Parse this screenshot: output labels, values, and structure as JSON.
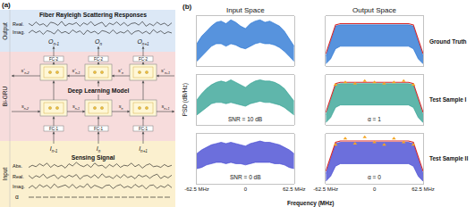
{
  "panel_a": {
    "label": "(a)",
    "output": {
      "side_label": "Output",
      "title": "Fiber Rayleigh Scattering Responses",
      "waveforms": [
        {
          "label": "Real.",
          "values": [
            0.2,
            -0.5,
            0.7,
            -0.3,
            0.1,
            -0.8,
            0.6,
            0.3,
            -0.4,
            0.9,
            -0.6,
            0.2,
            -0.1,
            0.5,
            -0.7,
            0.4,
            -0.2,
            0.8,
            -0.5,
            0.1,
            0.6,
            -0.9,
            0.3,
            -0.2,
            0.7,
            -0.4,
            0.5,
            -0.6,
            0.2,
            0.4,
            -0.3,
            0.8,
            -0.7,
            0.1,
            -0.5,
            0.6,
            -0.2,
            0.3,
            -0.6,
            0.4
          ]
        },
        {
          "label": "Imag.",
          "values": [
            -0.3,
            0.6,
            -0.2,
            0.4,
            -0.7,
            0.5,
            0.1,
            -0.6,
            0.8,
            -0.3,
            0.2,
            -0.5,
            0.7,
            -0.1,
            0.4,
            -0.8,
            0.6,
            -0.2,
            0.3,
            -0.6,
            0.5,
            0.2,
            -0.4,
            0.7,
            -0.5,
            0.1,
            -0.3,
            0.6,
            -0.7,
            0.2,
            0.5,
            -0.4,
            0.3,
            -0.6,
            0.8,
            -0.2,
            0.4,
            -0.5,
            0.1,
            -0.3
          ]
        }
      ],
      "nodes": [
        {
          "base": "O",
          "sub": "n-1"
        },
        {
          "base": "O",
          "sub": "n"
        },
        {
          "base": "O",
          "sub": "n+1"
        }
      ]
    },
    "model": {
      "side_label": "Bi-GRU",
      "title": "Deep Learning Model",
      "fc_top": "FC-2",
      "fc_bottom": "FC-1",
      "backward_states": [
        {
          "base": "s'",
          "sub": "n-2"
        },
        {
          "base": "s'",
          "sub": "n-1"
        },
        {
          "base": "s'",
          "sub": "n"
        },
        {
          "base": "s'",
          "sub": "n+1"
        }
      ],
      "forward_states": [
        {
          "base": "s",
          "sub": "n-2"
        },
        {
          "base": "s",
          "sub": "n-1"
        },
        {
          "base": "s",
          "sub": "n"
        },
        {
          "base": "s",
          "sub": "n+1"
        }
      ]
    },
    "input": {
      "side_label": "Input",
      "title": "Sensing Signal",
      "nodes": [
        {
          "base": "I",
          "sub": "n-1"
        },
        {
          "base": "I",
          "sub": "n"
        },
        {
          "base": "I",
          "sub": "n+1"
        }
      ],
      "waveforms": [
        {
          "label": "Abs.",
          "values": [
            0.3,
            0.6,
            0.4,
            0.8,
            0.5,
            0.9,
            0.3,
            0.7,
            0.4,
            0.6,
            0.2,
            0.8,
            0.5,
            1.0,
            0.6,
            0.4,
            0.7,
            0.3,
            0.9,
            0.5,
            0.6,
            0.2,
            0.7,
            0.4,
            0.8,
            0.3,
            0.6,
            0.5,
            0.9,
            0.4,
            0.7,
            0.2,
            0.6,
            0.8,
            0.4,
            0.5,
            0.3,
            0.7,
            0.4,
            0.6
          ]
        },
        {
          "label": "Real.",
          "values": [
            0.4,
            -0.6,
            0.3,
            -0.2,
            0.8,
            -0.5,
            0.1,
            0.6,
            -0.7,
            0.3,
            -0.4,
            0.5,
            -0.1,
            0.7,
            -0.8,
            0.2,
            0.4,
            -0.3,
            0.6,
            -0.5,
            0.9,
            -0.2,
            0.1,
            -0.6,
            0.5,
            -0.4,
            0.7,
            -0.3,
            0.2,
            -0.7,
            0.6,
            -0.1,
            0.4,
            -0.5,
            0.3,
            0.8,
            -0.6,
            0.2,
            -0.4,
            0.5
          ]
        },
        {
          "label": "Imag.",
          "values": [
            -0.5,
            0.3,
            -0.7,
            0.6,
            -0.2,
            0.4,
            -0.6,
            0.8,
            -0.3,
            0.1,
            0.5,
            -0.4,
            0.7,
            -0.6,
            0.2,
            -0.3,
            0.9,
            -0.5,
            0.4,
            -0.1,
            -0.6,
            0.3,
            0.5,
            -0.7,
            0.2,
            0.6,
            -0.4,
            0.1,
            -0.5,
            0.7,
            -0.2,
            0.4,
            -0.8,
            0.3,
            0.5,
            -0.6,
            0.2,
            -0.3,
            0.6,
            -0.4
          ]
        }
      ],
      "alpha_label": "α"
    }
  },
  "panel_b": {
    "label": "(b)",
    "column_titles": [
      "Input Space",
      "Output Space"
    ],
    "row_labels": [
      "Ground Truth",
      "Test Sample I",
      "Test Sample II"
    ],
    "ylabel": "PSD (dB/Hz)",
    "xlabel": "Frequency (MHz)"
  },
  "chart_data": [
    {
      "type": "line",
      "xlim": [
        -62.5,
        62.5
      ],
      "ylim": [
        -40,
        0
      ],
      "grid": false,
      "tick_labels": false,
      "x": [
        -62.5,
        -56.25,
        -50,
        -43.75,
        -37.5,
        -31.25,
        -25,
        -18.75,
        -12.5,
        -6.25,
        0,
        6.25,
        12.5,
        18.75,
        25,
        31.25,
        37.5,
        43.75,
        50,
        56.25,
        62.5
      ],
      "series": [
        {
          "type": "line",
          "color": "#1f6fd1",
          "values": [
            -36,
            -32,
            -28,
            -24,
            -22,
            -22,
            -24,
            -22,
            -23,
            -25,
            -26,
            -24,
            -22,
            -21,
            -22,
            -22,
            -23,
            -25,
            -28,
            -32,
            -36
          ]
        },
        {
          "type": "area",
          "color": "#1f6fd1",
          "values": [
            -22,
            -16,
            -12,
            -8,
            -5,
            -4,
            -6,
            -3,
            -5,
            -8,
            -10,
            -6,
            -4,
            -3,
            -5,
            -4,
            -6,
            -8,
            -12,
            -18,
            -24
          ]
        }
      ]
    },
    {
      "type": "line",
      "xlim": [
        -62.5,
        62.5
      ],
      "ylim": [
        -40,
        0
      ],
      "grid": false,
      "tick_labels": false,
      "x": [
        -62.5,
        -56.25,
        -50,
        -43.75,
        -37.5,
        -31.25,
        -25,
        -18.75,
        -12.5,
        -6.25,
        0,
        6.25,
        12.5,
        18.75,
        25,
        31.25,
        37.5,
        43.75,
        50,
        56.25,
        62.5
      ],
      "series": [
        {
          "type": "line",
          "color": "#1f6fd1",
          "values": [
            -38,
            -34,
            -26,
            -24,
            -24,
            -24,
            -24,
            -24,
            -24,
            -24,
            -24,
            -24,
            -24,
            -24,
            -24,
            -24,
            -24,
            -24,
            -26,
            -34,
            -38
          ]
        },
        {
          "type": "area",
          "color": "#1f6fd1",
          "values": [
            -32,
            -20,
            -8,
            -7,
            -7,
            -7,
            -7,
            -7,
            -7,
            -7,
            -7,
            -7,
            -7,
            -7,
            -7,
            -7,
            -7,
            -7,
            -8,
            -20,
            -32
          ]
        },
        {
          "type": "line",
          "color": "#d62728",
          "values": [
            -30,
            -18,
            -7,
            -6,
            -6,
            -6,
            -6,
            -6,
            -6,
            -6,
            -6,
            -6,
            -6,
            -6,
            -6,
            -6,
            -6,
            -6,
            -7,
            -18,
            -30
          ]
        }
      ]
    },
    {
      "type": "line",
      "xlim": [
        -62.5,
        62.5
      ],
      "ylim": [
        -40,
        0
      ],
      "grid": false,
      "tick_labels": false,
      "annotations": [
        "SNR = 10 dB"
      ],
      "x": [
        -62.5,
        -56.25,
        -50,
        -43.75,
        -37.5,
        -31.25,
        -25,
        -18.75,
        -12.5,
        -6.25,
        0,
        6.25,
        12.5,
        18.75,
        25,
        31.25,
        37.5,
        43.75,
        50,
        56.25,
        62.5
      ],
      "series": [
        {
          "type": "line",
          "color": "#2a9d8f",
          "values": [
            -32,
            -29,
            -26,
            -23,
            -22,
            -22,
            -23,
            -22,
            -23,
            -24,
            -25,
            -23,
            -22,
            -21,
            -22,
            -22,
            -23,
            -24,
            -26,
            -29,
            -32
          ]
        },
        {
          "type": "area",
          "color": "#2a9d8f",
          "values": [
            -20,
            -15,
            -11,
            -8,
            -6,
            -5,
            -6,
            -4,
            -6,
            -8,
            -10,
            -7,
            -5,
            -4,
            -5,
            -5,
            -6,
            -8,
            -11,
            -16,
            -21
          ]
        }
      ]
    },
    {
      "type": "line",
      "xlim": [
        -62.5,
        62.5
      ],
      "ylim": [
        -40,
        0
      ],
      "grid": false,
      "tick_labels": false,
      "annotations": [
        "α = 1"
      ],
      "x": [
        -62.5,
        -56.25,
        -50,
        -43.75,
        -37.5,
        -31.25,
        -25,
        -18.75,
        -12.5,
        -6.25,
        0,
        6.25,
        12.5,
        18.75,
        25,
        31.25,
        37.5,
        43.75,
        50,
        56.25,
        62.5
      ],
      "series": [
        {
          "type": "line",
          "color": "#2a9d8f",
          "values": [
            -38,
            -34,
            -26,
            -24,
            -24,
            -24,
            -24,
            -24,
            -24,
            -24,
            -24,
            -24,
            -24,
            -24,
            -24,
            -24,
            -24,
            -24,
            -26,
            -34,
            -38
          ]
        },
        {
          "type": "area",
          "color": "#2a9d8f",
          "values": [
            -32,
            -20,
            -8,
            -7,
            -7,
            -7,
            -7,
            -7,
            -7,
            -7,
            -7,
            -7,
            -7,
            -7,
            -7,
            -7,
            -7,
            -7,
            -8,
            -20,
            -32
          ]
        },
        {
          "type": "line",
          "color": "#d62728",
          "values": [
            -30,
            -18,
            -7,
            -6,
            -6,
            -6,
            -6,
            -6,
            -6,
            -6,
            -6,
            -6,
            -6,
            -6,
            -6,
            -6,
            -6,
            -6,
            -7,
            -18,
            -30
          ]
        },
        {
          "type": "scatter",
          "marker": "triangle-up",
          "color": "#f5a623",
          "values": [
            null,
            null,
            -8,
            null,
            -6,
            null,
            -7,
            null,
            -5,
            null,
            -6,
            null,
            -7,
            null,
            -6,
            null,
            -5,
            null,
            -8,
            null,
            null
          ]
        }
      ]
    },
    {
      "type": "line",
      "xlim": [
        -62.5,
        62.5
      ],
      "ylim": [
        -40,
        0
      ],
      "grid": false,
      "tick_labels": "x",
      "xticks": [
        {
          "value": -62.5,
          "label": "-62.5 MHz"
        },
        0,
        {
          "value": 62.5,
          "label": "62.5 MHz"
        }
      ],
      "annotations": [
        "SNR = 0 dB"
      ],
      "x": [
        -62.5,
        -56.25,
        -50,
        -43.75,
        -37.5,
        -31.25,
        -25,
        -18.75,
        -12.5,
        -6.25,
        0,
        6.25,
        12.5,
        18.75,
        25,
        31.25,
        37.5,
        43.75,
        50,
        56.25,
        62.5
      ],
      "series": [
        {
          "type": "line",
          "color": "#3b3fd0",
          "values": [
            -28,
            -27,
            -25,
            -24,
            -23,
            -23,
            -24,
            -23,
            -24,
            -24,
            -25,
            -24,
            -23,
            -23,
            -23,
            -23,
            -24,
            -24,
            -25,
            -27,
            -28
          ]
        },
        {
          "type": "area",
          "color": "#3b3fd0",
          "values": [
            -16,
            -13,
            -11,
            -9,
            -8,
            -7,
            -8,
            -7,
            -8,
            -9,
            -10,
            -8,
            -7,
            -6,
            -7,
            -7,
            -8,
            -9,
            -11,
            -13,
            -16
          ]
        }
      ]
    },
    {
      "type": "line",
      "xlim": [
        -62.5,
        62.5
      ],
      "ylim": [
        -40,
        0
      ],
      "grid": false,
      "tick_labels": "x",
      "xticks": [
        {
          "value": -62.5,
          "label": "-62.5 MHz"
        },
        0,
        {
          "value": 62.5,
          "label": "62.5 MHz"
        }
      ],
      "annotations": [
        "α = 0"
      ],
      "x": [
        -62.5,
        -56.25,
        -50,
        -43.75,
        -37.5,
        -31.25,
        -25,
        -18.75,
        -12.5,
        -6.25,
        0,
        6.25,
        12.5,
        18.75,
        25,
        31.25,
        37.5,
        43.75,
        50,
        56.25,
        62.5
      ],
      "series": [
        {
          "type": "line",
          "color": "#3b3fd0",
          "values": [
            -38,
            -34,
            -26,
            -24,
            -24,
            -24,
            -24,
            -24,
            -24,
            -24,
            -24,
            -24,
            -24,
            -24,
            -24,
            -24,
            -24,
            -24,
            -26,
            -34,
            -38
          ]
        },
        {
          "type": "area",
          "color": "#3b3fd0",
          "values": [
            -32,
            -20,
            -8,
            -7,
            -7,
            -7,
            -7,
            -7,
            -7,
            -7,
            -7,
            -7,
            -7,
            -7,
            -7,
            -7,
            -7,
            -7,
            -8,
            -20,
            -32
          ]
        },
        {
          "type": "line",
          "color": "#d62728",
          "values": [
            -30,
            -18,
            -7,
            -6,
            -6,
            -6,
            -6,
            -6,
            -6,
            -6,
            -6,
            -6,
            -6,
            -6,
            -6,
            -6,
            -6,
            -6,
            -7,
            -18,
            -30
          ]
        },
        {
          "type": "scatter",
          "marker": "triangle-up",
          "color": "#f5a623",
          "values": [
            null,
            null,
            -9,
            null,
            -4,
            null,
            -8,
            null,
            -3,
            null,
            -7,
            null,
            -9,
            null,
            -4,
            null,
            -7,
            null,
            -9,
            null,
            null
          ]
        }
      ]
    }
  ]
}
